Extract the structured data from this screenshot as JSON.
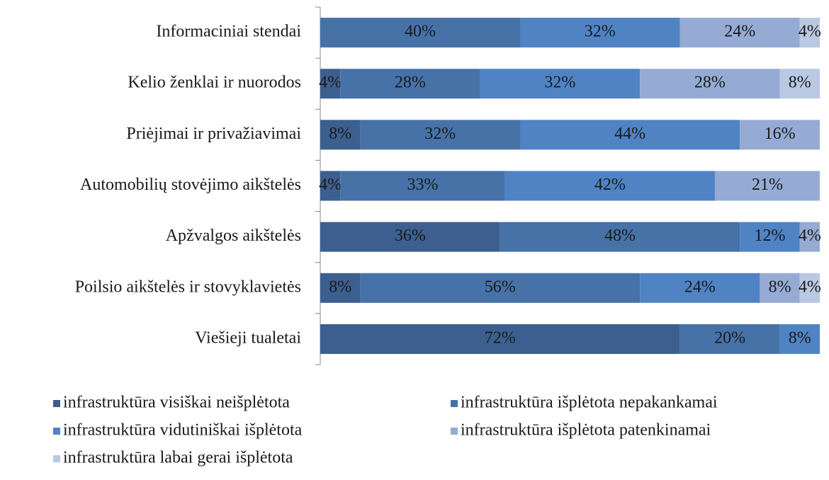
{
  "chart_data": {
    "type": "bar",
    "orientation": "horizontal",
    "stacked": true,
    "categories": [
      "Informaciniai stendai",
      "Kelio ženklai ir nuorodos",
      "Priėjimai ir privažiavimai",
      "Automobilių stovėjimo aikštelės",
      "Apžvalgos aikštelės",
      "Poilsio aikštelės ir stovyklavietės",
      "Viešieji tualetai"
    ],
    "xlim": [
      0,
      100
    ],
    "legend": "bottom",
    "series": [
      {
        "name": "infrastruktūra visiškai neišplėtota",
        "color": "#3c5f8f",
        "values": [
          0,
          4,
          8,
          4,
          36,
          8,
          72
        ],
        "value_labels": [
          null,
          "4%",
          "8%",
          "4%",
          "36%",
          "8%",
          "72%"
        ]
      },
      {
        "name": "infrastruktūra išplėtota nepakankamai",
        "color": "#4672a8",
        "values": [
          40,
          28,
          32,
          33,
          48,
          56,
          20
        ],
        "value_labels": [
          "40%",
          "28%",
          "32%",
          "33%",
          "48%",
          "56%",
          "20%"
        ]
      },
      {
        "name": "infrastruktūra vidutiniškai išplėtota",
        "color": "#4f83c4",
        "values": [
          32,
          32,
          44,
          42,
          12,
          24,
          8
        ],
        "value_labels": [
          "32%",
          "32%",
          "44%",
          "42%",
          "12%",
          "24%",
          "8%"
        ]
      },
      {
        "name": "infrastruktūra išplėtota patenkinamai",
        "color": "#95abd4",
        "values": [
          24,
          28,
          16,
          21,
          4,
          8,
          0
        ],
        "value_labels": [
          "24%",
          "28%",
          "16%",
          "21%",
          "4%",
          "8%",
          null
        ]
      },
      {
        "name": "infrastruktūra labai gerai išplėtota",
        "color": "#b9c9e3",
        "values": [
          4,
          8,
          0,
          0,
          0,
          4,
          0
        ],
        "value_labels": [
          "4%",
          "8%",
          null,
          null,
          null,
          "4%",
          null
        ]
      }
    ]
  }
}
